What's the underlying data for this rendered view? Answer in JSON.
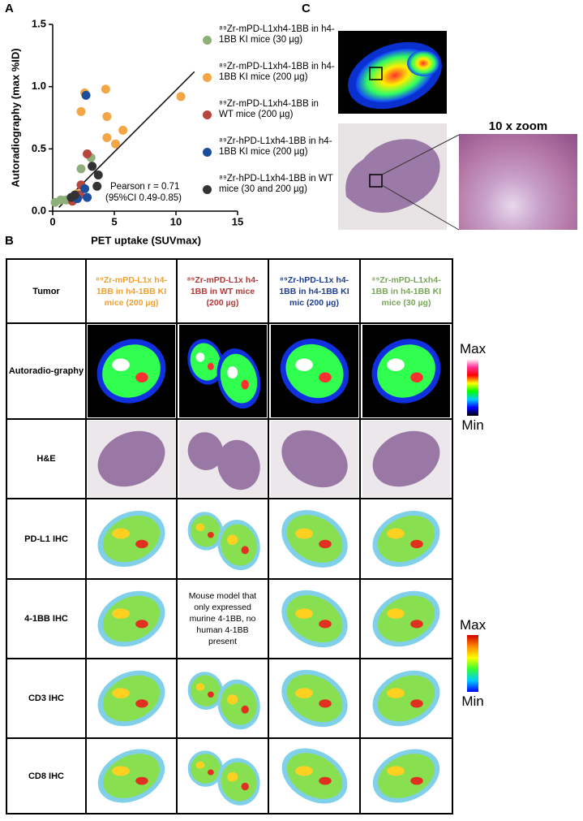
{
  "panel_labels": [
    "A",
    "B",
    "C"
  ],
  "chart_data": {
    "type": "scatter",
    "xlabel": "PET uptake (SUVmax)",
    "ylabel": "Autoradiography (max %ID)",
    "xlim": [
      0,
      15
    ],
    "xticks": [
      0,
      5,
      10,
      15
    ],
    "ylim": [
      0,
      1.5
    ],
    "yticks": [
      {
        "value": 0,
        "label": "0.0"
      },
      0.5,
      {
        "value": 1,
        "label": "1.0"
      },
      1.5
    ],
    "series": [
      {
        "name": "⁸⁹Zr-mPD-L1xh4-1BB in h4-1BB KI mice (30 µg)",
        "color": "#8db07a",
        "x": [
          0.2,
          0.66,
          1.1,
          1.6,
          2.3,
          3.1
        ],
        "values": [
          0.07,
          0.09,
          0.09,
          0.1,
          0.34,
          0.43
        ]
      },
      {
        "name": "⁸⁹Zr-mPD-L1xh4-1BB in h4-1BB KI mice (200 µg)",
        "color": "#f2a646",
        "x": [
          2.3,
          2.6,
          4.3,
          4.4,
          4.4,
          5.1,
          5.7,
          10.4,
          2.0
        ],
        "values": [
          0.8,
          0.95,
          0.98,
          0.76,
          0.59,
          0.54,
          0.65,
          0.92,
          0.14
        ]
      },
      {
        "name": "⁸⁹Zr-mPD-L1xh4-1BB in WT mice (200 µg)",
        "color": "#b5473f",
        "x": [
          2.8,
          1.6,
          2.2,
          2.3
        ],
        "values": [
          0.46,
          0.08,
          0.13,
          0.21
        ]
      },
      {
        "name": "⁸⁹Zr-hPD-L1xh4-1BB in h4-1BB KI mice (200 µg)",
        "color": "#1d4e9e",
        "x": [
          2.7,
          2.6,
          2.8,
          2.0
        ],
        "values": [
          0.93,
          0.18,
          0.11,
          0.1
        ]
      },
      {
        "name": "⁸⁹Zr-hPD-L1xh4-1BB in WT mice (30 and 200 µg)",
        "color": "#333333",
        "x": [
          3.2,
          3.7,
          3.6,
          1.5,
          1.8
        ],
        "values": [
          0.36,
          0.29,
          0.2,
          0.11,
          0.13
        ]
      }
    ],
    "trend_line": {
      "x": [
        0.5,
        11.5
      ],
      "values": [
        0.03,
        1.12
      ]
    },
    "annotations": [
      "Pearson r = 0.71",
      "(95%CI 0.49-0.85)"
    ]
  },
  "panel_c": {
    "zoom_label": "10 x zoom"
  },
  "table": {
    "header": [
      "Tumor",
      "⁸⁹Zr-mPD-L1x h4-1BB in h4-1BB KI mice (200 µg)",
      "⁸⁹Zr-mPD-L1x h4-1BB in WT mice (200 µg)",
      "⁸⁹Zr-hPD-L1x h4-1BB in h4-1BB KI mic (200 µg)",
      "⁸⁹Zr-mPD-L1xh4-1BB in h4-1BB KI mice (30 µg)"
    ],
    "header_colors": [
      "#000000",
      "#f0a030",
      "#b03a3a",
      "#1e3f8f",
      "#7aa65a"
    ],
    "row_labels": [
      "Autoradio-graphy",
      "H&E",
      "PD-L1 IHC",
      "4-1BB IHC",
      "CD3 IHC",
      "CD8 IHC"
    ],
    "note": "Mouse model that only expressed murine 4-1BB, no human 4-1BB present",
    "scales": [
      {
        "max": "Max",
        "min": "Min"
      },
      {
        "max": "Max",
        "min": "Min"
      }
    ]
  }
}
